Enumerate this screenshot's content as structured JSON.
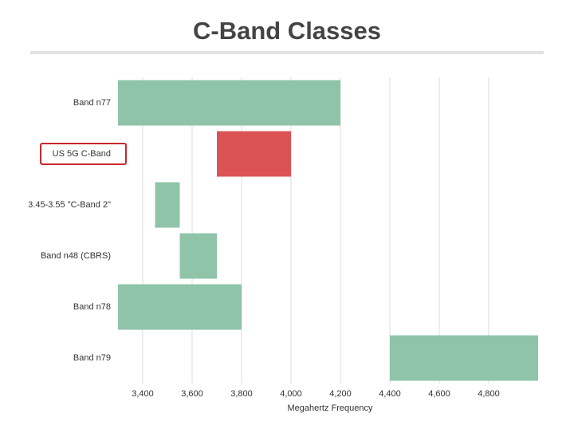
{
  "chart_data": {
    "type": "range_bar",
    "title": "C-Band Classes",
    "categories": [
      "Band n77",
      "US 5G C-Band",
      "3.45-3.55 \"C-Band 2\"",
      "Band n48 (CBRS)",
      "Band n78",
      "Band n79"
    ],
    "starts": [
      3300,
      3700,
      3450,
      3550,
      3300,
      4400
    ],
    "ends": [
      4200,
      4000,
      3550,
      3700,
      3800,
      5000
    ],
    "colors": [
      "#8fc4a9",
      "#dc5356",
      "#8fc4a9",
      "#8fc4a9",
      "#8fc4a9",
      "#8fc4a9"
    ],
    "highlight": 1,
    "highlight_color": "#c8282d",
    "xlabel": "Megahertz Frequency",
    "xlim": [
      3300,
      5000
    ],
    "xticks": [
      {
        "value": 3400,
        "label": "3,400"
      },
      {
        "value": 3600,
        "label": "3,600"
      },
      {
        "value": 3800,
        "label": "3,800"
      },
      {
        "value": 4000,
        "label": "4,000"
      },
      {
        "value": 4200,
        "label": "4,200"
      },
      {
        "value": 4400,
        "label": "4,400"
      },
      {
        "value": 4600,
        "label": "4,600"
      },
      {
        "value": 4800,
        "label": "4,800"
      }
    ],
    "grid": true
  }
}
